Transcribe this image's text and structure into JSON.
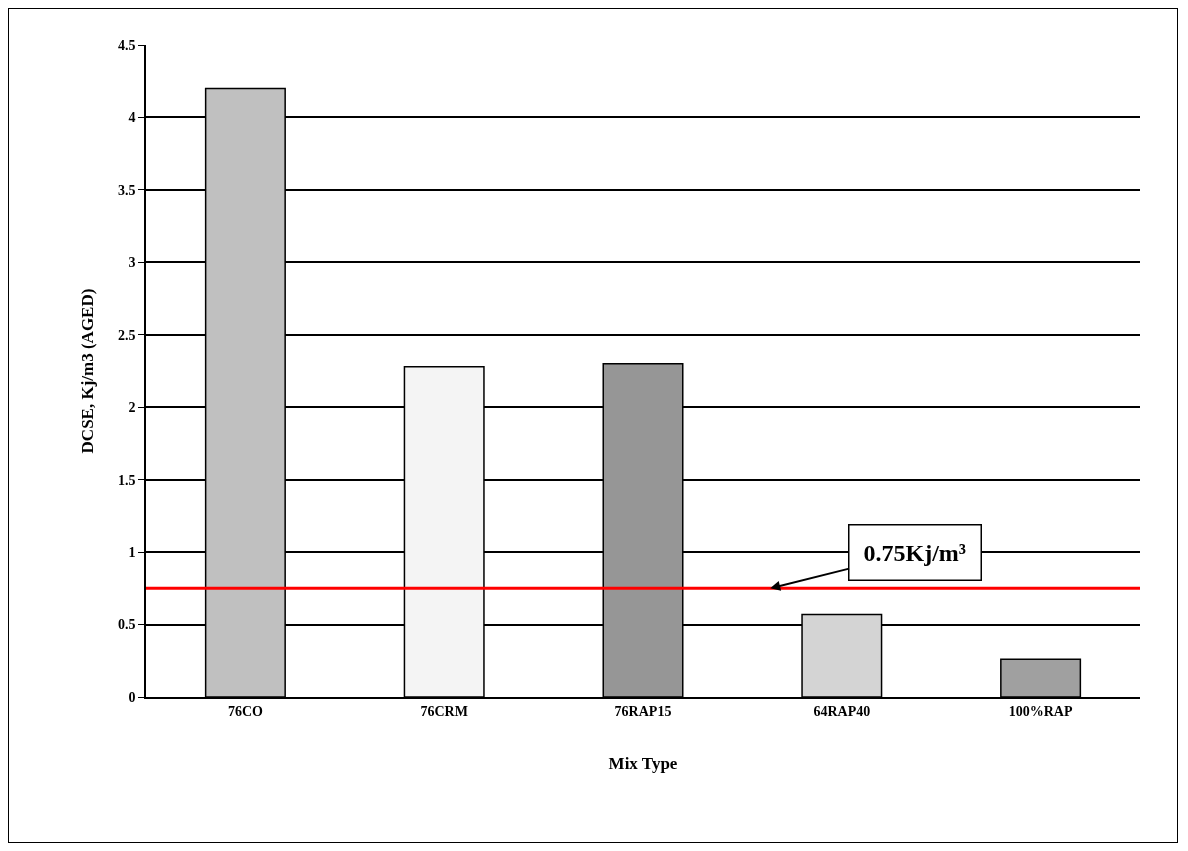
{
  "chart_data": {
    "type": "bar",
    "categories": [
      "76CO",
      "76CRM",
      "76RAP15",
      "64RAP40",
      "100%RAP"
    ],
    "values": [
      4.2,
      2.28,
      2.3,
      0.57,
      0.26
    ],
    "colors": [
      "#c0c0c0",
      "#f4f4f4",
      "#969696",
      "#d4d4d4",
      "#a0a0a0"
    ],
    "xlabel": "Mix Type",
    "ylabel": "DCSE, Kj/m3 (AGED)",
    "ylim": [
      0,
      4.5
    ],
    "yticks": [
      0,
      0.5,
      1,
      1.5,
      2,
      2.5,
      3,
      3.5,
      4,
      4.5
    ],
    "grid": "y",
    "ref_lines": [
      {
        "axis": "y",
        "value": 0.75,
        "label": "0.75Kj/m³",
        "color": "#ff0000"
      }
    ]
  }
}
